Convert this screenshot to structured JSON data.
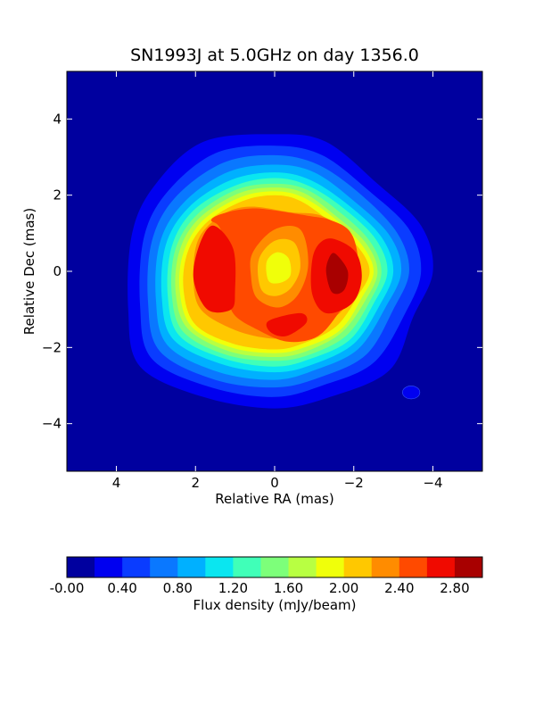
{
  "chart_data": {
    "type": "heatmap",
    "title": "SN1993J at 5.0GHz on day 1356.0",
    "xlabel": "Relative RA (mas)",
    "ylabel": "Relative Dec (mas)",
    "xlim": [
      5.25,
      -5.25
    ],
    "ylim": [
      -5.25,
      5.25
    ],
    "x_ticks": [
      4,
      2,
      0,
      -2,
      -4
    ],
    "x_tick_labels": [
      "4",
      "2",
      "0",
      "−2",
      "−4"
    ],
    "y_ticks": [
      4,
      2,
      0,
      -2,
      -4
    ],
    "y_tick_labels": [
      "4",
      "2",
      "0",
      "−2",
      "−4"
    ],
    "grid": false,
    "colorbar": {
      "label": "Flux density (mJy/beam)",
      "levels": [
        -0.0,
        0.2,
        0.4,
        0.6,
        0.8,
        1.0,
        1.2,
        1.4,
        1.6,
        1.8,
        2.0,
        2.2,
        2.4,
        2.6,
        2.8,
        3.0
      ],
      "tick_values": [
        0.0,
        0.4,
        0.8,
        1.2,
        1.6,
        2.0,
        2.4,
        2.8
      ],
      "tick_labels": [
        "-0.00",
        "0.40",
        "0.80",
        "1.20",
        "1.60",
        "2.00",
        "2.40",
        "2.80"
      ],
      "colors": [
        "#00009f",
        "#0000f0",
        "#0a3cff",
        "#0a78ff",
        "#00b0ff",
        "#0ae6f0",
        "#40ffb8",
        "#7dff7a",
        "#b8ff42",
        "#f0ff0a",
        "#ffc800",
        "#ff8c00",
        "#ff4a00",
        "#f00a00",
        "#a80000"
      ]
    },
    "contours": [
      {
        "level": 0.2,
        "color_index": 1,
        "points": [
          [
            1.8,
            3.4
          ],
          [
            0,
            3.6
          ],
          [
            -1.3,
            3.4
          ],
          [
            -2.6,
            2.3
          ],
          [
            -3.7,
            1.2
          ],
          [
            -4.0,
            0
          ],
          [
            -3.5,
            -1.2
          ],
          [
            -2.9,
            -2.6
          ],
          [
            -1.4,
            -3.3
          ],
          [
            0,
            -3.6
          ],
          [
            1.8,
            -3.3
          ],
          [
            3.4,
            -2.5
          ],
          [
            3.7,
            -1.0
          ],
          [
            3.6,
            1.0
          ],
          [
            3.0,
            2.3
          ]
        ]
      },
      {
        "level": 0.4,
        "color_index": 2,
        "points": [
          [
            1.5,
            3.1
          ],
          [
            0,
            3.3
          ],
          [
            -1.2,
            3.05
          ],
          [
            -2.4,
            2.1
          ],
          [
            -3.4,
            1.1
          ],
          [
            -3.7,
            0
          ],
          [
            -3.3,
            -1.1
          ],
          [
            -2.5,
            -2.4
          ],
          [
            -1.2,
            -3.0
          ],
          [
            0,
            -3.3
          ],
          [
            1.6,
            -3.05
          ],
          [
            3.1,
            -2.3
          ],
          [
            3.4,
            -0.9
          ],
          [
            3.3,
            0.9
          ],
          [
            2.7,
            2.1
          ]
        ]
      },
      {
        "level": 0.6,
        "color_index": 3,
        "points": [
          [
            1.3,
            2.85
          ],
          [
            0,
            3.05
          ],
          [
            -1.1,
            2.8
          ],
          [
            -2.2,
            2.0
          ],
          [
            -3.1,
            1.0
          ],
          [
            -3.4,
            0
          ],
          [
            -3.0,
            -1.0
          ],
          [
            -2.3,
            -2.2
          ],
          [
            -1.1,
            -2.8
          ],
          [
            0,
            -3.05
          ],
          [
            1.5,
            -2.85
          ],
          [
            2.9,
            -2.1
          ],
          [
            3.2,
            -0.8
          ],
          [
            3.1,
            0.8
          ],
          [
            2.5,
            1.95
          ]
        ]
      },
      {
        "level": 0.8,
        "color_index": 4,
        "points": [
          [
            1.2,
            2.6
          ],
          [
            0,
            2.8
          ],
          [
            -1.0,
            2.6
          ],
          [
            -2.0,
            1.85
          ],
          [
            -2.9,
            0.95
          ],
          [
            -3.2,
            0
          ],
          [
            -2.8,
            -0.95
          ],
          [
            -2.1,
            -2.05
          ],
          [
            -1.0,
            -2.6
          ],
          [
            0,
            -2.85
          ],
          [
            1.4,
            -2.65
          ],
          [
            2.7,
            -1.95
          ],
          [
            3.0,
            -0.75
          ],
          [
            2.9,
            0.75
          ],
          [
            2.3,
            1.8
          ]
        ]
      },
      {
        "level": 1.0,
        "color_index": 5,
        "points": [
          [
            1.1,
            2.4
          ],
          [
            0,
            2.6
          ],
          [
            -0.9,
            2.4
          ],
          [
            -1.85,
            1.75
          ],
          [
            -2.7,
            0.9
          ],
          [
            -3.0,
            0
          ],
          [
            -2.65,
            -0.9
          ],
          [
            -2.0,
            -1.9
          ],
          [
            -0.95,
            -2.45
          ],
          [
            0,
            -2.65
          ],
          [
            1.3,
            -2.45
          ],
          [
            2.55,
            -1.8
          ],
          [
            2.85,
            -0.7
          ],
          [
            2.75,
            0.7
          ],
          [
            2.15,
            1.7
          ]
        ]
      },
      {
        "level": 1.2,
        "color_index": 6,
        "points": [
          [
            1.0,
            2.25
          ],
          [
            0,
            2.45
          ],
          [
            -0.85,
            2.25
          ],
          [
            -1.75,
            1.65
          ],
          [
            -2.55,
            0.85
          ],
          [
            -2.85,
            0
          ],
          [
            -2.5,
            -0.85
          ],
          [
            -1.9,
            -1.8
          ],
          [
            -0.9,
            -2.3
          ],
          [
            0,
            -2.5
          ],
          [
            1.25,
            -2.3
          ],
          [
            2.4,
            -1.7
          ],
          [
            2.7,
            -0.65
          ],
          [
            2.6,
            0.65
          ],
          [
            2.05,
            1.6
          ]
        ]
      },
      {
        "level": 1.4,
        "color_index": 7,
        "points": [
          [
            0.95,
            2.15
          ],
          [
            0,
            2.3
          ],
          [
            -0.8,
            2.15
          ],
          [
            -1.65,
            1.55
          ],
          [
            -2.4,
            0.8
          ],
          [
            -2.7,
            0
          ],
          [
            -2.4,
            -0.8
          ],
          [
            -1.8,
            -1.7
          ],
          [
            -0.85,
            -2.2
          ],
          [
            0,
            -2.35
          ],
          [
            1.2,
            -2.2
          ],
          [
            2.3,
            -1.6
          ],
          [
            2.6,
            -0.6
          ],
          [
            2.5,
            0.6
          ],
          [
            1.95,
            1.5
          ]
        ]
      },
      {
        "level": 1.6,
        "color_index": 8,
        "points": [
          [
            0.9,
            2.05
          ],
          [
            0,
            2.2
          ],
          [
            -0.75,
            2.05
          ],
          [
            -1.55,
            1.45
          ],
          [
            -2.3,
            0.75
          ],
          [
            -2.6,
            0
          ],
          [
            -2.3,
            -0.75
          ],
          [
            -1.7,
            -1.6
          ],
          [
            -0.8,
            -2.1
          ],
          [
            0,
            -2.25
          ],
          [
            1.15,
            -2.1
          ],
          [
            2.2,
            -1.5
          ],
          [
            2.5,
            -0.55
          ],
          [
            2.4,
            0.55
          ],
          [
            1.9,
            1.4
          ]
        ]
      },
      {
        "level": 1.8,
        "color_index": 9,
        "points": [
          [
            0.85,
            1.95
          ],
          [
            0,
            2.1
          ],
          [
            -0.7,
            1.95
          ],
          [
            -1.5,
            1.4
          ],
          [
            -2.2,
            0.7
          ],
          [
            -2.5,
            0
          ],
          [
            -2.2,
            -0.7
          ],
          [
            -1.65,
            -1.55
          ],
          [
            -0.75,
            -2.0
          ],
          [
            0,
            -2.15
          ],
          [
            1.1,
            -2.0
          ],
          [
            2.1,
            -1.45
          ],
          [
            2.4,
            -0.5
          ],
          [
            2.3,
            0.5
          ],
          [
            1.8,
            1.35
          ]
        ]
      },
      {
        "level": 2.0,
        "color_index": 10,
        "points": [
          [
            0.8,
            1.85
          ],
          [
            0,
            2.0
          ],
          [
            -0.65,
            1.85
          ],
          [
            -1.4,
            1.3
          ],
          [
            -2.1,
            0.65
          ],
          [
            -2.4,
            0
          ],
          [
            -2.1,
            -0.65
          ],
          [
            -1.55,
            -1.45
          ],
          [
            -0.7,
            -1.9
          ],
          [
            0,
            -2.05
          ],
          [
            1.05,
            -1.9
          ],
          [
            2.0,
            -1.4
          ],
          [
            2.3,
            -0.5
          ],
          [
            2.2,
            0.5
          ],
          [
            1.7,
            1.3
          ]
        ]
      },
      {
        "level": 2.2,
        "color_index": 11,
        "points": [
          [
            0.6,
            1.7
          ],
          [
            -0.4,
            1.55
          ],
          [
            -1.2,
            1.45
          ],
          [
            -1.9,
            0.9
          ],
          [
            -2.1,
            0
          ],
          [
            -1.8,
            -0.9
          ],
          [
            -1.35,
            -1.3
          ],
          [
            -0.6,
            -1.7
          ],
          [
            0.2,
            -1.75
          ],
          [
            1.1,
            -1.5
          ],
          [
            1.9,
            -0.95
          ],
          [
            2.05,
            0
          ],
          [
            1.9,
            0.9
          ],
          [
            1.3,
            1.5
          ]
        ]
      },
      {
        "level": 2.4,
        "color_index": 12,
        "points": [
          [
            1.6,
            1.35
          ],
          [
            1.35,
            1.05
          ],
          [
            1.15,
            -0.4
          ],
          [
            1.05,
            -1.1
          ],
          [
            0.4,
            -1.55
          ],
          [
            -0.35,
            -1.85
          ],
          [
            -1.1,
            -1.7
          ],
          [
            -1.65,
            -1.05
          ],
          [
            -2.05,
            -0.4
          ],
          [
            -2.1,
            0.4
          ],
          [
            -1.9,
            1.05
          ],
          [
            -1.4,
            1.35
          ],
          [
            -0.9,
            1.45
          ],
          [
            0,
            1.6
          ],
          [
            0.6,
            1.65
          ],
          [
            1.2,
            1.55
          ]
        ]
      }
    ],
    "peaks": [
      {
        "name": "left-lobe",
        "level": 2.6,
        "color_index": 13,
        "points": [
          [
            1.9,
            0.7
          ],
          [
            1.55,
            1.2
          ],
          [
            1.05,
            0.6
          ],
          [
            1.0,
            -0.5
          ],
          [
            1.1,
            -1.0
          ],
          [
            1.7,
            -1.0
          ],
          [
            2.05,
            -0.2
          ]
        ]
      },
      {
        "name": "right-lobe",
        "level": 2.6,
        "color_index": 13,
        "points": [
          [
            -1.5,
            0.85
          ],
          [
            -2.05,
            0.5
          ],
          [
            -2.2,
            -0.2
          ],
          [
            -1.95,
            -0.85
          ],
          [
            -1.3,
            -1.1
          ],
          [
            -0.95,
            -0.6
          ],
          [
            -0.95,
            0.3
          ],
          [
            -1.15,
            0.75
          ]
        ]
      },
      {
        "name": "bottom-spot",
        "level": 2.6,
        "color_index": 13,
        "points": [
          [
            0.15,
            -1.3
          ],
          [
            -0.65,
            -1.1
          ],
          [
            -0.8,
            -1.35
          ],
          [
            -0.3,
            -1.7
          ],
          [
            0.1,
            -1.6
          ]
        ]
      },
      {
        "name": "right-core",
        "level": 2.8,
        "color_index": 14,
        "points": [
          [
            -1.55,
            0.45
          ],
          [
            -1.85,
            0.0
          ],
          [
            -1.75,
            -0.5
          ],
          [
            -1.45,
            -0.55
          ],
          [
            -1.3,
            0.0
          ],
          [
            -1.4,
            0.4
          ]
        ]
      }
    ],
    "center_hole": [
      {
        "level": 2.2,
        "color_index": 11,
        "points": [
          [
            0.55,
            0.5
          ],
          [
            0.0,
            1.1
          ],
          [
            -0.65,
            1.1
          ],
          [
            -0.85,
            0.2
          ],
          [
            -0.6,
            -0.6
          ],
          [
            -0.1,
            -0.95
          ],
          [
            0.45,
            -0.7
          ],
          [
            0.6,
            -0.1
          ]
        ]
      },
      {
        "level": 2.0,
        "color_index": 10,
        "points": [
          [
            0.4,
            0.3
          ],
          [
            0.0,
            0.8
          ],
          [
            -0.5,
            0.75
          ],
          [
            -0.65,
            0.1
          ],
          [
            -0.4,
            -0.45
          ],
          [
            0.0,
            -0.65
          ],
          [
            0.35,
            -0.45
          ]
        ]
      },
      {
        "level": 1.8,
        "color_index": 9,
        "points": [
          [
            0.2,
            0.25
          ],
          [
            -0.05,
            0.5
          ],
          [
            -0.35,
            0.35
          ],
          [
            -0.4,
            -0.1
          ],
          [
            -0.15,
            -0.3
          ],
          [
            0.15,
            -0.25
          ]
        ]
      }
    ],
    "beam": {
      "x": -3.45,
      "y": -3.18,
      "rx": 0.22,
      "ry": 0.17,
      "color_index": 1
    }
  }
}
